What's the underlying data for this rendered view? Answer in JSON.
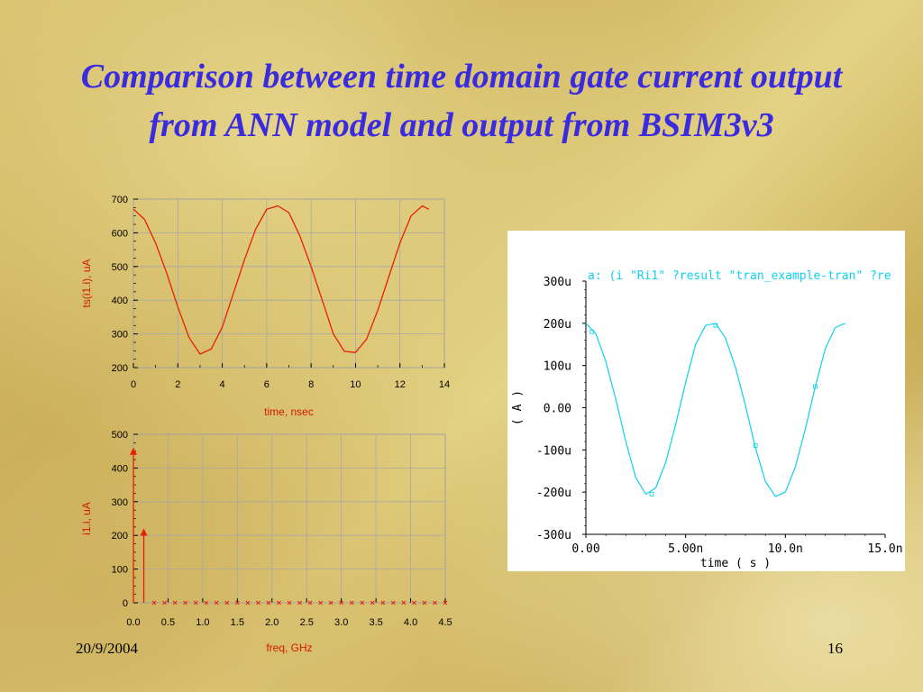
{
  "slide": {
    "title": "Comparison between time domain gate current output from ANN model and output from BSIM3v3",
    "date": "20/9/2004",
    "page_number": "16"
  },
  "colors": {
    "title": "#3a2be0",
    "ann_trace": "#e82000",
    "bsim_trace": "#10d0f0",
    "axis_label": "#d41a00"
  },
  "chart_data": [
    {
      "type": "line",
      "xlabel": "time, nsec",
      "ylabel": "ts(i1.i), uA",
      "xlim": [
        0,
        14
      ],
      "ylim": [
        200,
        700
      ],
      "x_ticks": [
        0,
        2,
        4,
        6,
        8,
        10,
        12,
        14
      ],
      "y_ticks": [
        200,
        300,
        400,
        500,
        600,
        700
      ],
      "grid": true,
      "series": [
        {
          "x": [
            0,
            0.5,
            1,
            1.5,
            2,
            2.5,
            3,
            3.5,
            4,
            4.5,
            5,
            5.5,
            6,
            6.5,
            7,
            7.5,
            8,
            8.5,
            9,
            9.5,
            10,
            10.5,
            11,
            11.5,
            12,
            12.5,
            13,
            13.3
          ],
          "values": [
            670,
            640,
            570,
            480,
            380,
            290,
            240,
            255,
            320,
            420,
            520,
            610,
            670,
            680,
            660,
            590,
            500,
            400,
            300,
            248,
            245,
            285,
            370,
            470,
            570,
            650,
            680,
            670
          ]
        }
      ]
    },
    {
      "type": "bar",
      "xlabel": "freq, GHz",
      "ylabel": "i1.i, uA",
      "xlim": [
        0,
        4.5
      ],
      "ylim": [
        0,
        500
      ],
      "x_ticks": [
        "0.0",
        "0.5",
        "1.0",
        "1.5",
        "2.0",
        "2.5",
        "3.0",
        "3.5",
        "4.0",
        "4.5"
      ],
      "y_ticks": [
        0,
        100,
        200,
        300,
        400,
        500
      ],
      "grid": true,
      "series": [
        {
          "x": [
            0.0,
            0.15,
            0.3,
            0.45,
            0.6,
            0.75,
            0.9,
            1.05,
            1.2,
            1.35,
            1.5,
            1.65,
            1.8,
            1.95,
            2.1,
            2.25,
            2.4,
            2.55,
            2.7,
            2.85,
            3.0,
            3.15,
            3.3,
            3.45,
            3.6,
            3.75,
            3.9,
            4.05,
            4.2,
            4.35,
            4.5
          ],
          "values": [
            450,
            210,
            2,
            1,
            1,
            1,
            1,
            1,
            1,
            1,
            1,
            1,
            1,
            1,
            1,
            1,
            1,
            1,
            1,
            1,
            1,
            1,
            1,
            1,
            1,
            1,
            1,
            1,
            1,
            1,
            1
          ]
        }
      ]
    },
    {
      "type": "line",
      "legend_text": "a: (i \"Ri1\" ?result \"tran_example-tran\" ?re",
      "xlabel": "time ( s )",
      "ylabel": "( A )",
      "xlim": [
        0,
        15
      ],
      "ylim": [
        -300,
        300
      ],
      "x_ticks": [
        "0.00",
        "5.00n",
        "10.0n",
        "15.0n"
      ],
      "y_ticks": [
        "300u",
        "200u",
        "100u",
        "0.00",
        "-100u",
        "-200u",
        "-300u"
      ],
      "grid": false,
      "series": [
        {
          "x": [
            0,
            0.5,
            1,
            1.5,
            2,
            2.5,
            3,
            3.5,
            4,
            4.5,
            5,
            5.5,
            6,
            6.5,
            7,
            7.5,
            8,
            8.5,
            9,
            9.5,
            10,
            10.5,
            11,
            11.5,
            12,
            12.5,
            13
          ],
          "values": [
            200,
            175,
            110,
            20,
            -80,
            -165,
            -205,
            -190,
            -130,
            -40,
            60,
            150,
            195,
            200,
            165,
            95,
            5,
            -95,
            -175,
            -210,
            -200,
            -140,
            -50,
            50,
            140,
            190,
            200
          ]
        }
      ]
    }
  ]
}
